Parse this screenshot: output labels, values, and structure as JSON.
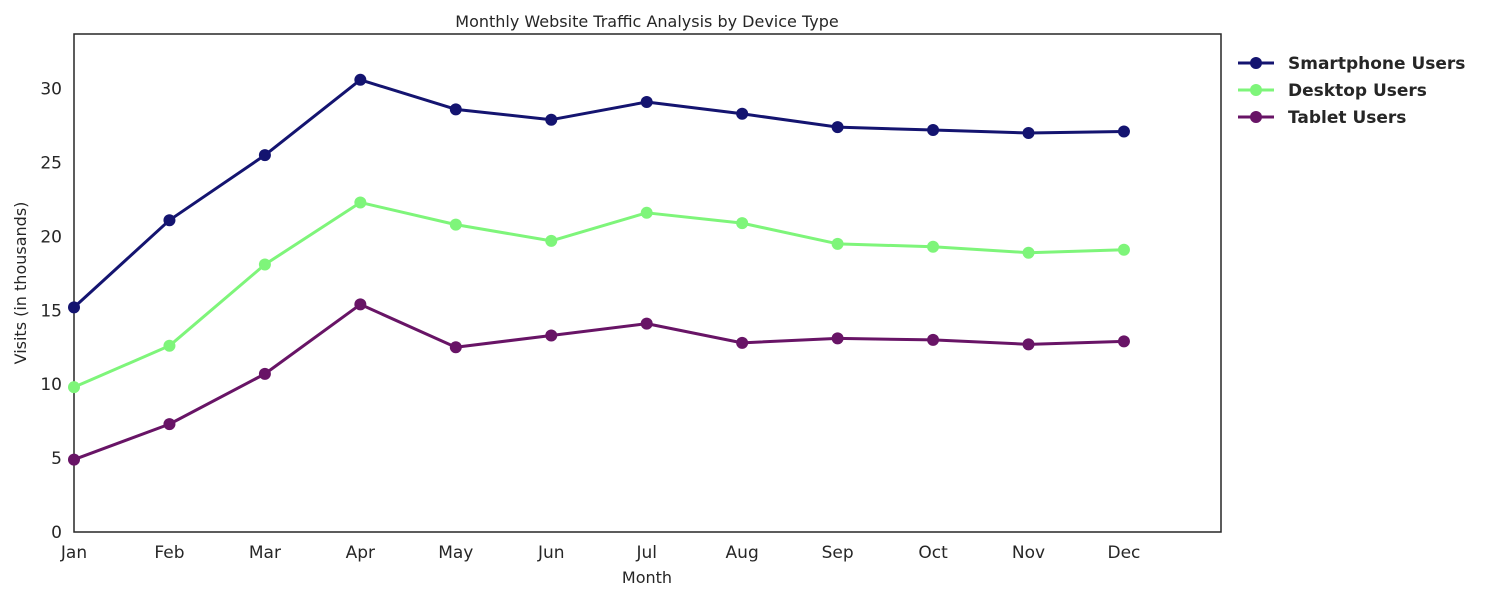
{
  "chart_data": {
    "type": "line",
    "title": "Monthly Website Traffic Analysis by Device Type",
    "xlabel": "Month",
    "ylabel": "Visits (in thousands)",
    "categories": [
      "Jan",
      "Feb",
      "Mar",
      "Apr",
      "May",
      "Jun",
      "Jul",
      "Aug",
      "Sep",
      "Oct",
      "Nov",
      "Dec"
    ],
    "ylim": [
      0,
      33.7
    ],
    "yticks": [
      0,
      5,
      10,
      15,
      20,
      25,
      30
    ],
    "grid": false,
    "legend_position": "outside-top-right",
    "series": [
      {
        "name": "Smartphone Users",
        "color": "#141470",
        "values": [
          15.2,
          21.1,
          25.5,
          30.6,
          28.6,
          27.9,
          29.1,
          28.3,
          27.4,
          27.2,
          27.0,
          27.1
        ]
      },
      {
        "name": "Desktop Users",
        "color": "#7ef57a",
        "values": [
          9.8,
          12.6,
          18.1,
          22.3,
          20.8,
          19.7,
          21.6,
          20.9,
          19.5,
          19.3,
          18.9,
          19.1
        ]
      },
      {
        "name": "Tablet Users",
        "color": "#681466",
        "values": [
          4.9,
          7.3,
          10.7,
          15.4,
          12.5,
          13.3,
          14.1,
          12.8,
          13.1,
          13.0,
          12.7,
          12.9
        ]
      }
    ]
  }
}
